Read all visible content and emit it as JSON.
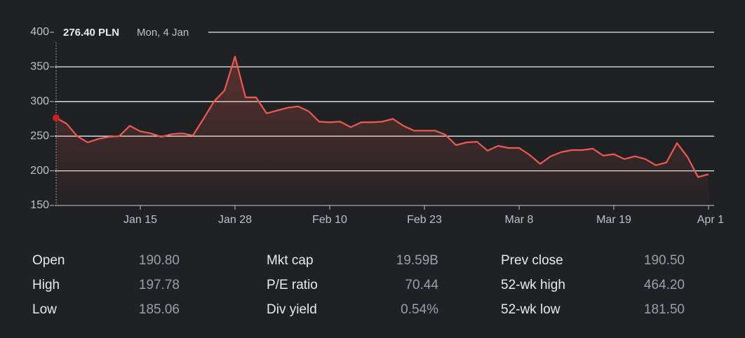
{
  "chart_data": {
    "type": "line",
    "categories": [
      null,
      null,
      null,
      null,
      null,
      null,
      null,
      null,
      "Jan 15",
      null,
      null,
      null,
      null,
      null,
      null,
      null,
      null,
      "Jan 28",
      null,
      null,
      null,
      null,
      null,
      null,
      null,
      null,
      "Feb 10",
      null,
      null,
      null,
      null,
      null,
      null,
      null,
      null,
      "Feb 23",
      null,
      null,
      null,
      null,
      null,
      null,
      null,
      null,
      "Mar 8",
      null,
      null,
      null,
      null,
      null,
      null,
      null,
      null,
      "Mar 19",
      null,
      null,
      null,
      null,
      null,
      null,
      null,
      null,
      "Apr 1"
    ],
    "series": [
      {
        "name": "Price",
        "color": "#ee5a4f",
        "values": [
          276.4,
          268,
          250,
          241,
          246,
          249,
          250,
          265,
          257,
          254,
          249,
          253,
          254,
          251,
          275,
          300,
          316,
          365,
          306,
          306,
          283,
          287,
          291,
          293,
          286,
          271,
          270,
          271,
          263,
          270,
          270,
          271,
          275,
          265,
          258,
          258,
          258,
          252,
          237,
          241,
          242,
          229,
          236,
          233,
          233,
          223,
          210,
          221,
          227,
          230,
          230,
          232,
          222,
          224,
          217,
          221,
          217,
          208,
          212,
          240,
          220,
          191,
          195
        ]
      }
    ],
    "ylim": [
      150,
      400
    ],
    "yticks": [
      150,
      200,
      250,
      300,
      350,
      400
    ],
    "grid": true,
    "tooltip": {
      "price": "276.40 PLN",
      "date": "Mon, 4 Jan"
    }
  },
  "stats": [
    [
      [
        "Open",
        "190.80"
      ],
      [
        "High",
        "197.78"
      ],
      [
        "Low",
        "185.06"
      ]
    ],
    [
      [
        "Mkt cap",
        "19.59B"
      ],
      [
        "P/E ratio",
        "70.44"
      ],
      [
        "Div yield",
        "0.54%"
      ]
    ],
    [
      [
        "Prev close",
        "190.50"
      ],
      [
        "52-wk high",
        "464.20"
      ],
      [
        "52-wk low",
        "181.50"
      ]
    ]
  ]
}
